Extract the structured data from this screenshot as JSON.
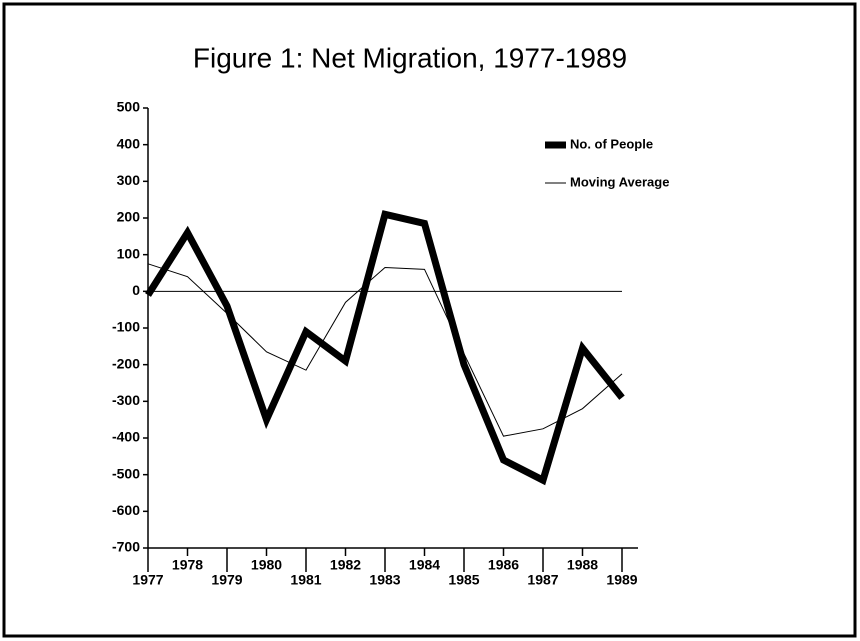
{
  "chart_data": {
    "type": "line",
    "title": "Figure 1: Net Migration, 1977-1989",
    "categories": [
      "1977",
      "1978",
      "1979",
      "1980",
      "1981",
      "1982",
      "1983",
      "1984",
      "1985",
      "1986",
      "1987",
      "1988",
      "1989"
    ],
    "series": [
      {
        "name": "No. of People",
        "color": "#000000",
        "values": [
          -10,
          160,
          -40,
          -350,
          -110,
          -190,
          210,
          185,
          -200,
          -460,
          -515,
          -155,
          -290
        ]
      },
      {
        "name": "Moving Average",
        "color": "#000000",
        "values": [
          75,
          40,
          -60,
          -165,
          -215,
          -30,
          65,
          60,
          -170,
          -395,
          -375,
          -320,
          -225
        ]
      }
    ],
    "ylim": [
      -700,
      500
    ],
    "yticks": [
      500,
      400,
      300,
      200,
      100,
      0,
      -100,
      -200,
      -300,
      -400,
      -500,
      -600,
      -700
    ],
    "legend": "upper right"
  }
}
